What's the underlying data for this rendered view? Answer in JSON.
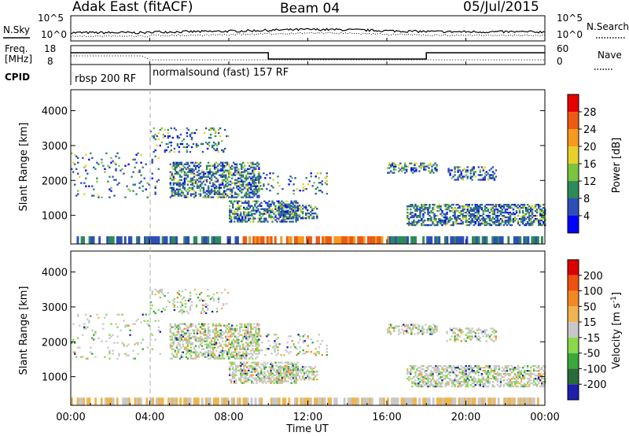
{
  "header": {
    "title": "Adak East (fitACF)",
    "beam": "Beam 04",
    "date": "05/Jul/2015"
  },
  "top_panels": {
    "nsky_label": "N.Sky",
    "nsearch_label": "N.Search",
    "noise_ticks": [
      "10^5",
      "10^0"
    ],
    "freq_label": "Freq.",
    "freq_unit": "[MHz]",
    "freq_ticks": [
      "18",
      "8"
    ],
    "nave_label": "Nave",
    "nave_ticks": [
      "60",
      "0"
    ],
    "cpid_label": "CPID",
    "cpid_segments": [
      {
        "label": "rbsp 200 RF",
        "start_hour": 0.0,
        "end_hour": 4.0
      },
      {
        "label": "normalsound (fast) 157 RF",
        "start_hour": 4.0,
        "end_hour": 24.0
      }
    ]
  },
  "chart_data": [
    {
      "type": "heatmap",
      "name": "power",
      "ylabel": "Slant Range [km]",
      "yticks": [
        "1000",
        "2000",
        "3000",
        "4000"
      ],
      "ylim": [
        180,
        4600
      ],
      "xlim_hours": [
        0,
        24
      ],
      "colorbar_label": "Power [dB]",
      "colorbar_ticks": [
        "4",
        "8",
        "12",
        "16",
        "20",
        "24",
        "28"
      ],
      "colorbar_range": [
        0,
        32
      ],
      "colorbar_colors": [
        "#0000ff",
        "#2d4fb8",
        "#2d8a5a",
        "#7cc440",
        "#e8d02a",
        "#f59a1e",
        "#ee5a14",
        "#e60000"
      ]
    },
    {
      "type": "heatmap",
      "name": "velocity",
      "ylabel": "Slant Range [km]",
      "yticks": [
        "1000",
        "2000",
        "3000",
        "4000"
      ],
      "ylim": [
        180,
        4600
      ],
      "xlim_hours": [
        0,
        24
      ],
      "colorbar_label": "Velocity [m s",
      "colorbar_exp": "-1",
      "colorbar_ticks": [
        "200",
        "100",
        "50",
        "15",
        "-15",
        "-50",
        "-100",
        "-200"
      ],
      "colorbar_colors": [
        "#1e1eaa",
        "#2a6a3a",
        "#3aa83a",
        "#8ad84a",
        "#c8c8c8",
        "#f0b450",
        "#f08a20",
        "#ee5010",
        "#dd0000"
      ]
    }
  ],
  "xaxis": {
    "ticks": [
      "00:00",
      "04:00",
      "08:00",
      "12:00",
      "16:00",
      "20:00",
      "00:00"
    ],
    "tick_hours": [
      0,
      4,
      8,
      12,
      16,
      20,
      24
    ],
    "label": "Time UT"
  }
}
